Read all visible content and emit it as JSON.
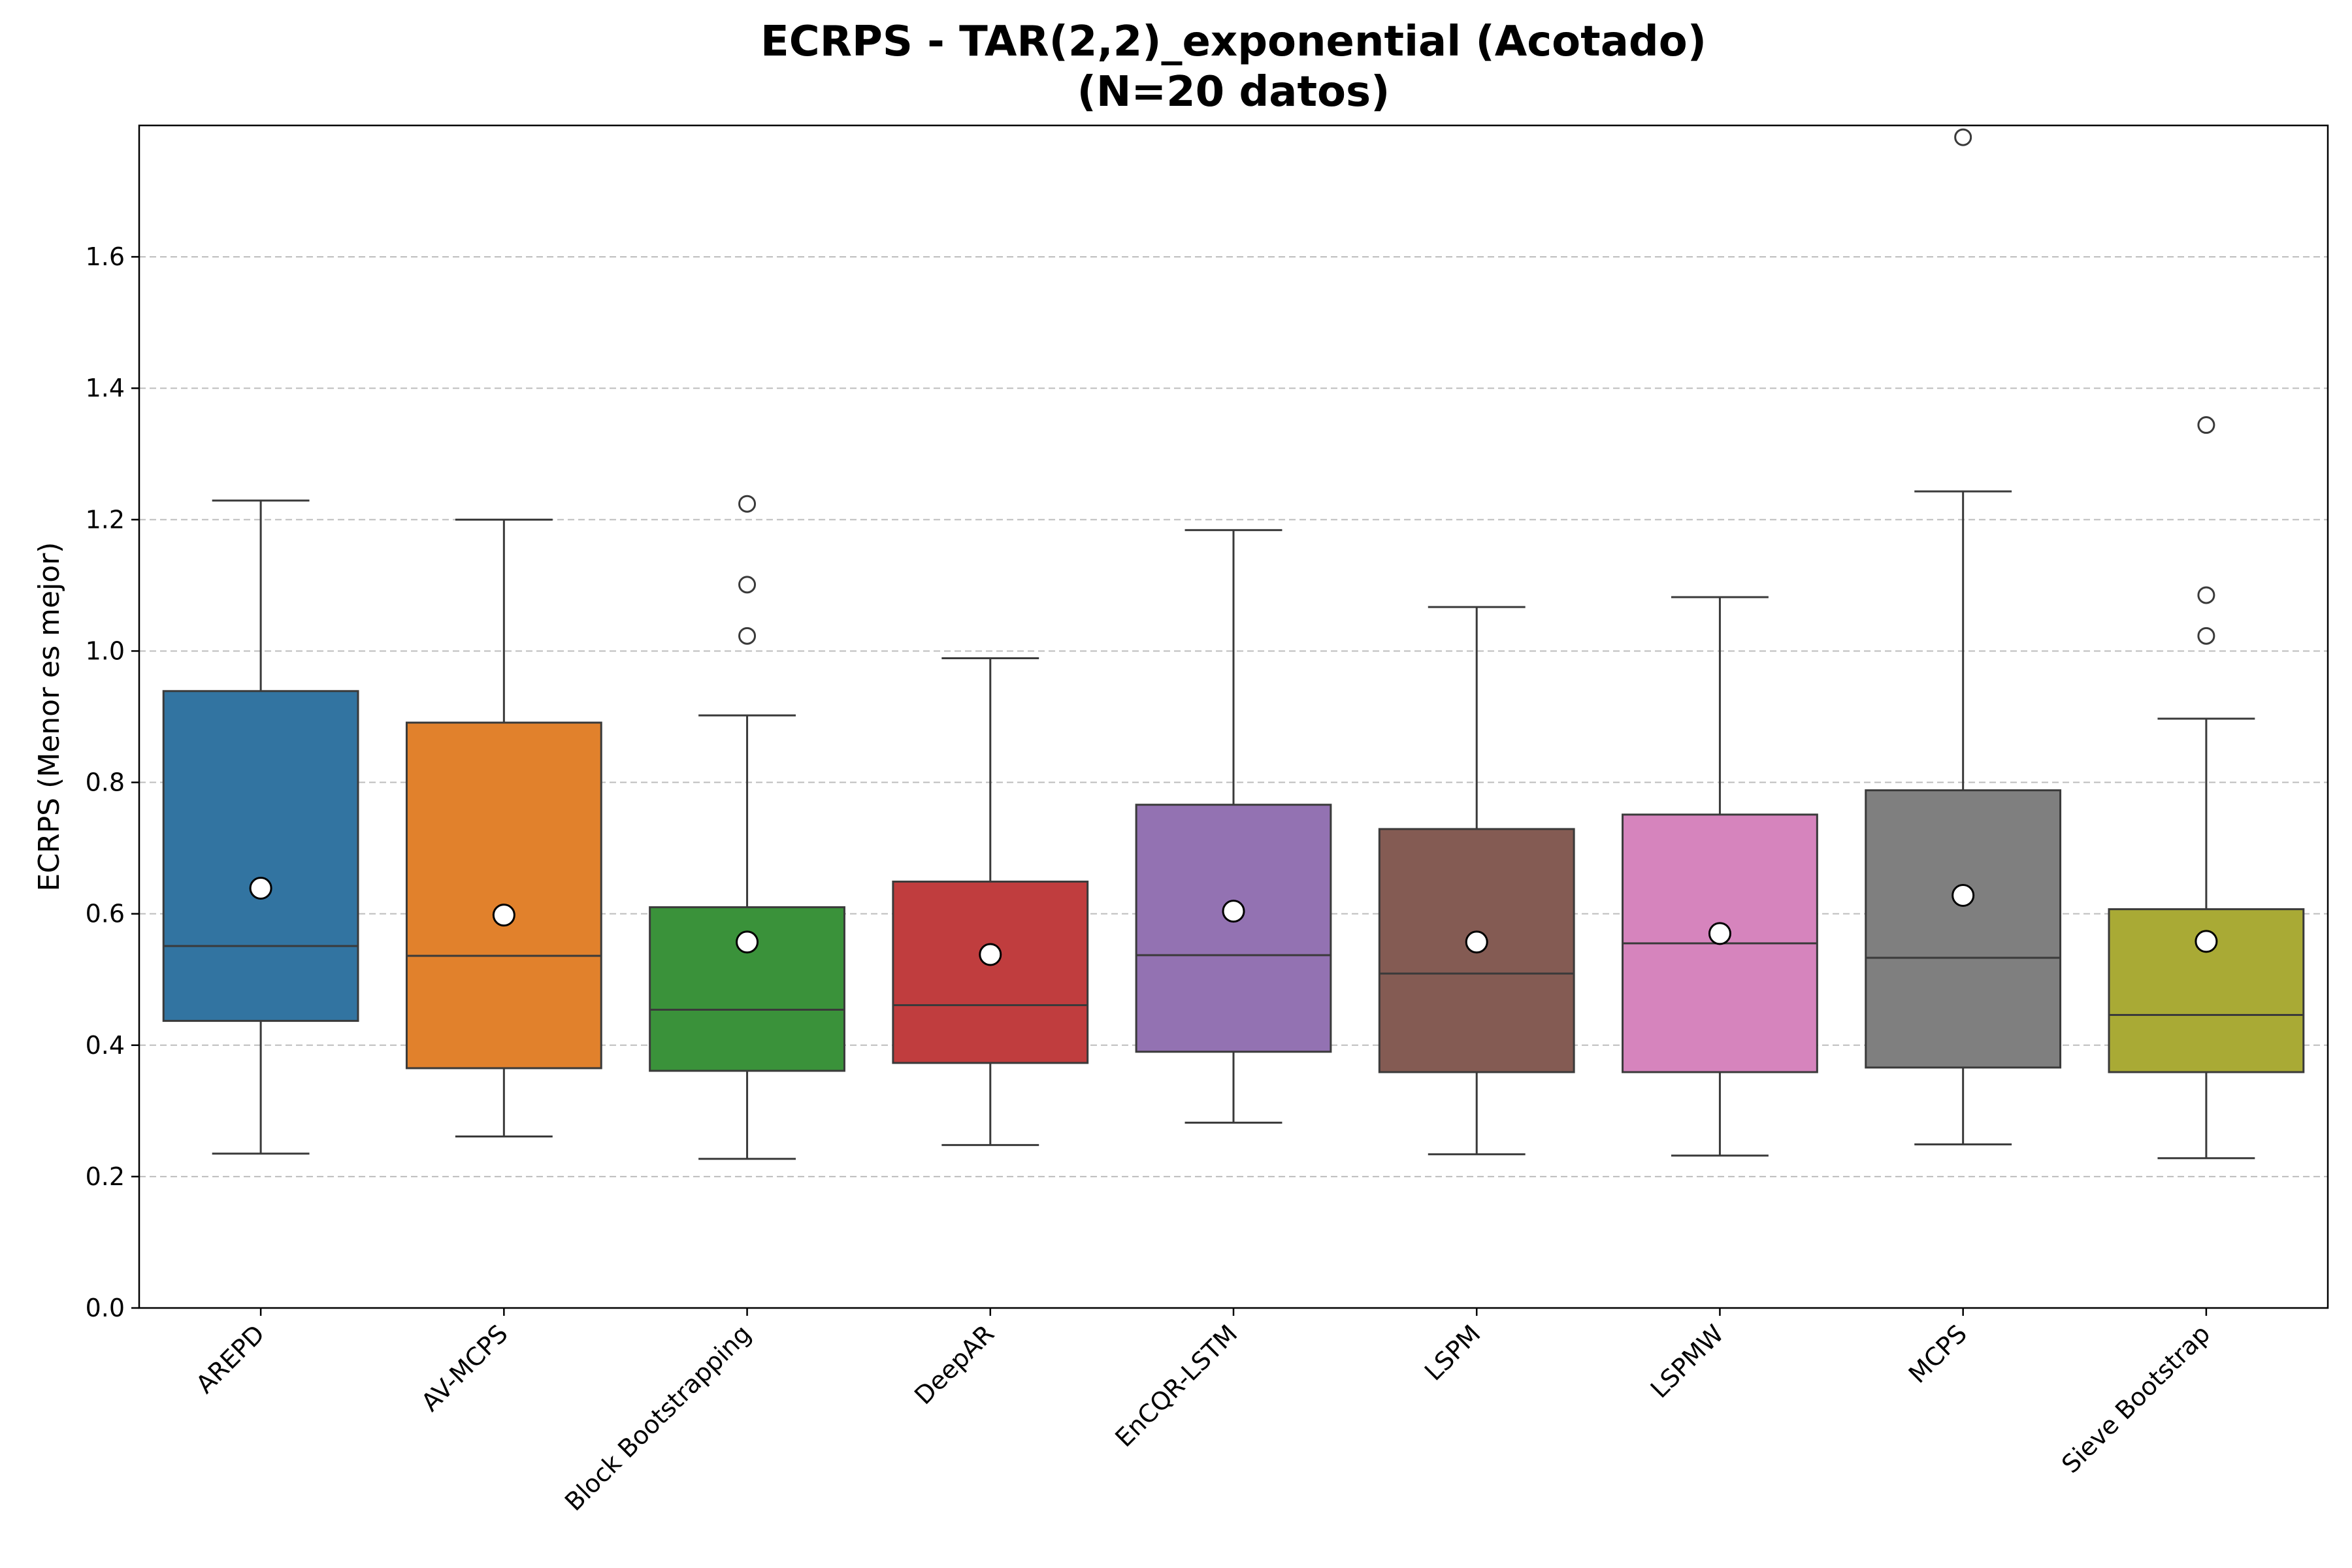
{
  "chart_data": {
    "type": "boxplot",
    "title": "ECRPS - TAR(2,2)_exponential (Acotado)",
    "subtitle": "(N=20 datos)",
    "xlabel": "",
    "ylabel": "ECRPS (Menor es mejor)",
    "ylim": [
      0.0,
      1.8
    ],
    "yticks": [
      "0.0",
      "0.2",
      "0.4",
      "0.6",
      "0.8",
      "1.0",
      "1.2",
      "1.4",
      "1.6"
    ],
    "grid": "y-dashed",
    "categories": [
      "AREPD",
      "AV-MCPS",
      "Block Bootstrapping",
      "DeepAR",
      "EnCQR-LSTM",
      "LSPM",
      "LSPMW",
      "MCPS",
      "Sieve Bootstrap"
    ],
    "colors": [
      "#3274a1",
      "#e1812c",
      "#3a923a",
      "#c03d3e",
      "#9372b2",
      "#845b53",
      "#d684bd",
      "#7f7f7f",
      "#a9aa35"
    ],
    "boxes": [
      {
        "whisker_low": 0.235,
        "q1": 0.437,
        "median": 0.551,
        "q3": 0.939,
        "whisker_high": 1.229,
        "mean": 0.639,
        "outliers": []
      },
      {
        "whisker_low": 0.261,
        "q1": 0.365,
        "median": 0.536,
        "q3": 0.891,
        "whisker_high": 1.2,
        "mean": 0.598,
        "outliers": []
      },
      {
        "whisker_low": 0.227,
        "q1": 0.361,
        "median": 0.454,
        "q3": 0.61,
        "whisker_high": 0.902,
        "mean": 0.557,
        "outliers": [
          1.023,
          1.101,
          1.224
        ]
      },
      {
        "whisker_low": 0.248,
        "q1": 0.373,
        "median": 0.461,
        "q3": 0.649,
        "whisker_high": 0.989,
        "mean": 0.538,
        "outliers": []
      },
      {
        "whisker_low": 0.282,
        "q1": 0.39,
        "median": 0.537,
        "q3": 0.766,
        "whisker_high": 1.184,
        "mean": 0.604,
        "outliers": []
      },
      {
        "whisker_low": 0.234,
        "q1": 0.359,
        "median": 0.509,
        "q3": 0.729,
        "whisker_high": 1.067,
        "mean": 0.557,
        "outliers": []
      },
      {
        "whisker_low": 0.232,
        "q1": 0.359,
        "median": 0.555,
        "q3": 0.751,
        "whisker_high": 1.082,
        "mean": 0.57,
        "outliers": []
      },
      {
        "whisker_low": 0.249,
        "q1": 0.366,
        "median": 0.533,
        "q3": 0.788,
        "whisker_high": 1.243,
        "mean": 0.628,
        "outliers": [
          1.782
        ]
      },
      {
        "whisker_low": 0.228,
        "q1": 0.359,
        "median": 0.446,
        "q3": 0.607,
        "whisker_high": 0.897,
        "mean": 0.558,
        "outliers": [
          1.023,
          1.085,
          1.344
        ]
      }
    ]
  }
}
